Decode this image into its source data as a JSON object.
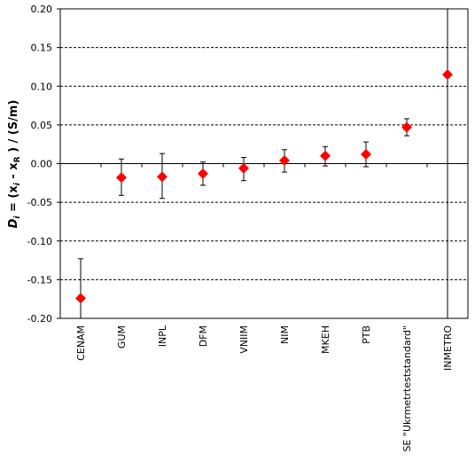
{
  "chart_data": {
    "type": "scatter",
    "title": "",
    "xlabel": "",
    "ylabel": {
      "prefix": "D",
      "prefix_sub": "i",
      "middle": " = (x",
      "middle_sub": "i",
      "dash": " - x",
      "dash_sub": "R",
      "suffix": " ) / (S/m)"
    },
    "ylim": [
      -0.2,
      0.2
    ],
    "yticks": [
      "-0.20",
      "-0.15",
      "-0.10",
      "-0.05",
      "0.00",
      "0.05",
      "0.10",
      "0.15",
      "0.20"
    ],
    "ytick_values": [
      -0.2,
      -0.15,
      -0.1,
      -0.05,
      0.0,
      0.05,
      0.1,
      0.15,
      0.2
    ],
    "grid": "horizontal dashed",
    "marker_color": "#ff0000",
    "categories": [
      "CENAM",
      "GUM",
      "INPL",
      "DFM",
      "VNIIM",
      "NIM",
      "MKEH",
      "PTB",
      "SE \"Ukrmetrteststandard\"",
      "INMETRO"
    ],
    "points": [
      {
        "label": "CENAM",
        "value": -0.174,
        "low": -0.2,
        "high": -0.123
      },
      {
        "label": "GUM",
        "value": -0.018,
        "low": -0.041,
        "high": 0.006
      },
      {
        "label": "INPL",
        "value": -0.017,
        "low": -0.045,
        "high": 0.013
      },
      {
        "label": "DFM",
        "value": -0.013,
        "low": -0.028,
        "high": 0.002
      },
      {
        "label": "VNIIM",
        "value": -0.006,
        "low": -0.022,
        "high": 0.008
      },
      {
        "label": "NIM",
        "value": 0.004,
        "low": -0.011,
        "high": 0.018
      },
      {
        "label": "MKEH",
        "value": 0.01,
        "low": -0.003,
        "high": 0.022
      },
      {
        "label": "PTB",
        "value": 0.012,
        "low": -0.004,
        "high": 0.028
      },
      {
        "label": "SE \"Ukrmetrteststandard\"",
        "value": 0.047,
        "low": 0.036,
        "high": 0.058
      },
      {
        "label": "INMETRO",
        "value": 0.115,
        "low": -0.2,
        "high": 0.2
      }
    ]
  }
}
